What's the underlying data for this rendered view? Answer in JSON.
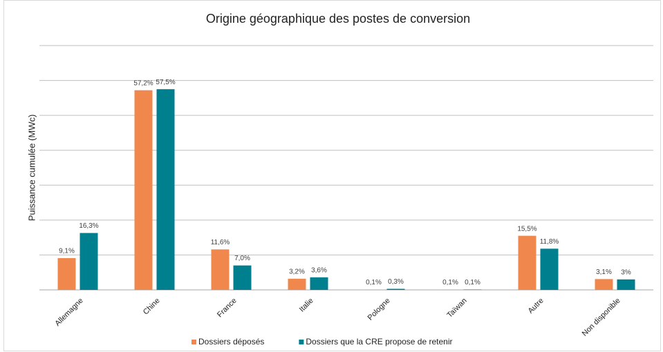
{
  "chart_data": {
    "type": "bar",
    "title": "Origine géographique des postes de conversion",
    "y_label": "Puissance cumulée (MWc)",
    "categories": [
      "Allemagne",
      "Chine",
      "France",
      "Italie",
      "Pologne",
      "Taïwan",
      "Autre",
      "Non disponible"
    ],
    "series": [
      {
        "name": "Dossiers déposés",
        "color": "#f0884e",
        "values": [
          9.1,
          57.2,
          11.6,
          3.2,
          0.1,
          0.1,
          15.5,
          3.1
        ],
        "value_labels": [
          "9,1%",
          "57,2%",
          "11,6%",
          "3,2%",
          "0,1%",
          "0,1%",
          "15,5%",
          "3,1%"
        ]
      },
      {
        "name": "Dossiers que la CRE propose de retenir",
        "color": "#007f8f",
        "values": [
          16.3,
          57.5,
          7.0,
          3.6,
          0.3,
          0.1,
          11.8,
          3
        ],
        "value_labels": [
          "16,3%",
          "57,5%",
          "7,0%",
          "3,6%",
          "0,3%",
          "0,1%",
          "11,8%",
          "3%"
        ]
      }
    ],
    "ylim": [
      0,
      70
    ],
    "yticks": [
      0,
      10,
      20,
      30,
      40,
      50,
      60,
      70
    ],
    "grid": true,
    "legend": "bottom"
  }
}
